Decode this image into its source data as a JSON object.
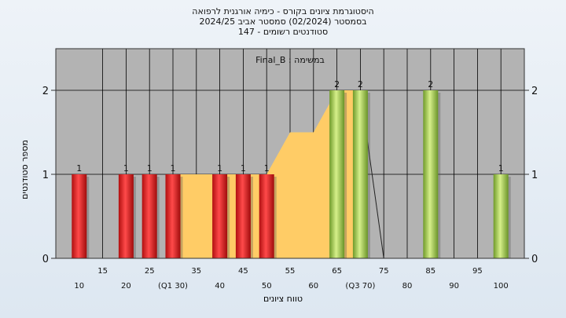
{
  "chart_data": {
    "type": "bar",
    "title_lines": [
      "היסטוגרמת ציונים בקורס - כימיה אורגנית לרפואה",
      "בסמסטר (02/2024) סמסטר אביב 2024/25",
      "סטודנטים רשומים - 147"
    ],
    "subtitle": "Final_B : במשימה",
    "xlabel": "טווח ציונים",
    "ylabel": "מספר סטודנטים",
    "ylim": [
      0,
      2.4
    ],
    "yticks": [
      0,
      1,
      2
    ],
    "grid": true,
    "x_ticks_row1": [
      "10",
      "20",
      "(Q1 30)",
      "40",
      "50",
      "60",
      "(Q3 70)",
      "80",
      "90",
      "100"
    ],
    "x_ticks_row2": [
      "15",
      "25",
      "35",
      "45",
      "55",
      "65",
      "75",
      "85",
      "95"
    ],
    "bars": [
      {
        "x": 10,
        "value": 1,
        "label": "1",
        "color": "red"
      },
      {
        "x": 20,
        "value": 1,
        "label": "1",
        "color": "red"
      },
      {
        "x": 25,
        "value": 1,
        "label": "1",
        "color": "red"
      },
      {
        "x": 30,
        "value": 1,
        "label": "1",
        "color": "red"
      },
      {
        "x": 40,
        "value": 1,
        "label": "1",
        "color": "red"
      },
      {
        "x": 45,
        "value": 1,
        "label": "1",
        "color": "red"
      },
      {
        "x": 50,
        "value": 1,
        "label": "1",
        "color": "red"
      },
      {
        "x": 65,
        "value": 2,
        "label": "2",
        "color": "green"
      },
      {
        "x": 70,
        "value": 2,
        "label": "2",
        "color": "green"
      },
      {
        "x": 85,
        "value": 2,
        "label": "2",
        "color": "green"
      },
      {
        "x": 100,
        "value": 1,
        "label": "1",
        "color": "green"
      }
    ],
    "quartile_area": [
      [
        30,
        1
      ],
      [
        50,
        1
      ],
      [
        55,
        1.5
      ],
      [
        60,
        1.5
      ],
      [
        65,
        2
      ],
      [
        70,
        2
      ]
    ],
    "trend_line": [
      [
        70,
        2
      ],
      [
        75,
        0
      ]
    ],
    "colors": {
      "plot_bg": "#b3b3b3",
      "area": "#ffcc66",
      "red": "#e02020",
      "green": "#a6cc55"
    }
  }
}
